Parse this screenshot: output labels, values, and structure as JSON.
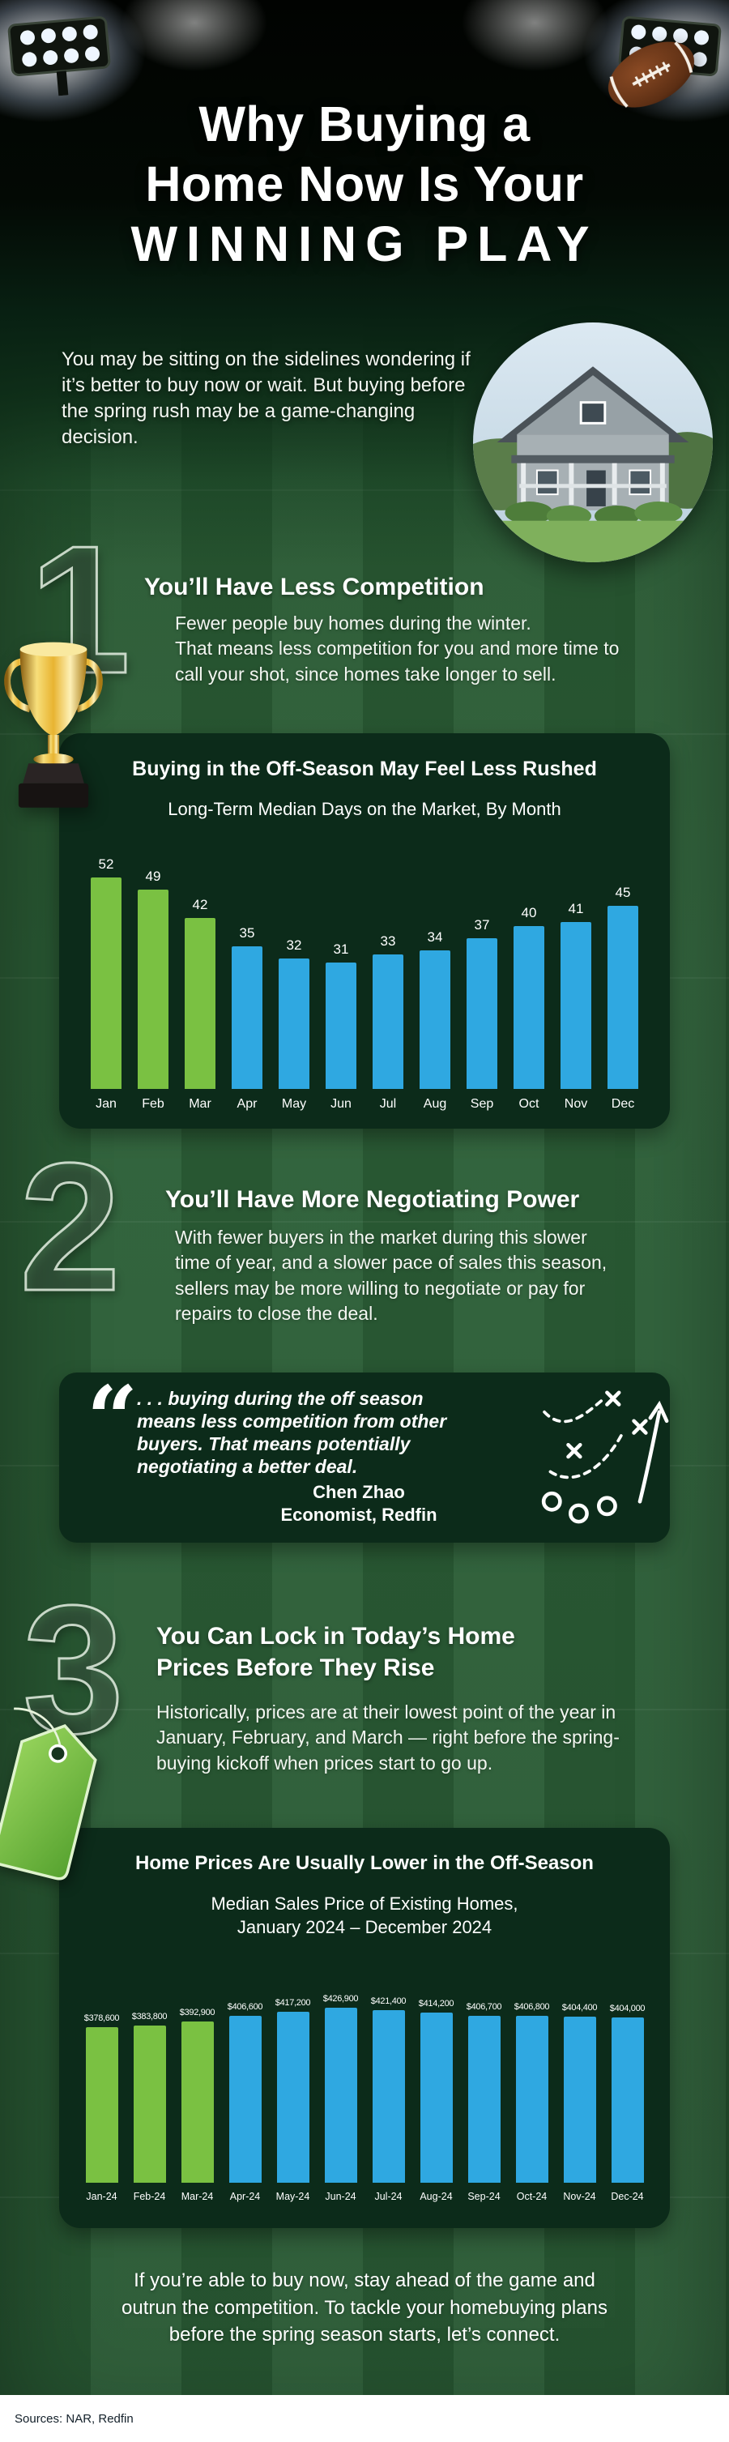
{
  "header": {
    "title_lines": [
      "Why Buying a",
      "Home Now Is Your",
      "WINNING PLAY"
    ],
    "intro": "You may be sitting on the sidelines wondering if it’s better to buy now or wait. But buying before the spring rush may be a game-changing decision."
  },
  "sections": [
    {
      "number": "1",
      "heading": "You’ll Have Less Competition",
      "body": "Fewer people buy homes during the winter.\nThat means less competition for you and more time to call your shot, since homes take longer to sell."
    },
    {
      "number": "2",
      "heading": "You’ll Have More Negotiating Power",
      "body": "With fewer buyers in the market during this slower time of year, and a slower pace of sales this season, sellers may be more willing to negotiate or pay for repairs to close the deal."
    },
    {
      "number": "3",
      "heading": "You Can Lock in Today’s Home Prices Before They Rise",
      "body": "Historically, prices are at their lowest point of the year in January, February, and March — right before the spring-buying kickoff when prices start to go up."
    }
  ],
  "quote": {
    "mark": "“",
    "text": ". . . buying during the off season means less competition from other buyers. That means potentially negotiating a better deal.",
    "author": "Chen Zhao",
    "author_title": "Economist, Redfin"
  },
  "chart_data": [
    {
      "type": "bar",
      "title": "Buying in the Off-Season May Feel Less Rushed",
      "subtitle": "Long-Term Median Days on the Market, By Month",
      "categories": [
        "Jan",
        "Feb",
        "Mar",
        "Apr",
        "May",
        "Jun",
        "Jul",
        "Aug",
        "Sep",
        "Oct",
        "Nov",
        "Dec"
      ],
      "values": [
        52,
        49,
        42,
        35,
        32,
        31,
        33,
        34,
        37,
        40,
        41,
        45
      ],
      "value_labels": [
        "52",
        "49",
        "42",
        "35",
        "32",
        "31",
        "33",
        "34",
        "37",
        "40",
        "41",
        "45"
      ],
      "highlight_first_n": 3,
      "bar_color_highlight": "#7ac142",
      "bar_color_default": "#2fa8e1",
      "xlabel": "",
      "ylabel": "",
      "ylim": [
        0,
        52
      ],
      "grid": false,
      "legend": "none"
    },
    {
      "type": "bar",
      "title": "Home Prices Are Usually Lower in the Off-Season",
      "subtitle": "Median Sales Price of Existing Homes,\nJanuary 2024 – December 2024",
      "categories": [
        "Jan-24",
        "Feb-24",
        "Mar-24",
        "Apr-24",
        "May-24",
        "Jun-24",
        "Jul-24",
        "Aug-24",
        "Sep-24",
        "Oct-24",
        "Nov-24",
        "Dec-24"
      ],
      "values": [
        378600,
        383800,
        392900,
        406600,
        417200,
        426900,
        421400,
        414200,
        406700,
        406800,
        404400,
        404000
      ],
      "value_labels": [
        "$378,600",
        "$383,800",
        "$392,900",
        "$406,600",
        "$417,200",
        "$426,900",
        "$421,400",
        "$414,200",
        "$406,700",
        "$406,800",
        "$404,400",
        "$404,000"
      ],
      "highlight_first_n": 3,
      "bar_color_highlight": "#7ac142",
      "bar_color_default": "#2fa8e1",
      "xlabel": "",
      "ylabel": "",
      "ylim": [
        0,
        430000
      ],
      "grid": false,
      "legend": "none"
    }
  ],
  "footer": {
    "text": "If you’re able to buy now, stay ahead of the game and outrun the competition. To tackle your homebuying plans before the spring season starts, let’s connect.",
    "sources": "Sources: NAR, Redfin"
  },
  "icons": {
    "stadium_lights": "stadium-lights-icon",
    "football": "football-icon",
    "house_photo": "house-photo",
    "trophy": "trophy-icon",
    "quote_mark": "quote-mark-icon",
    "play_diagram": "play-diagram-icon",
    "price_tag": "price-tag-icon"
  },
  "colors": {
    "field_green": "#2a5a34",
    "card_green": "#0c2b1a",
    "bar_green": "#7ac142",
    "bar_blue": "#2fa8e1",
    "text_white": "#ffffff"
  }
}
